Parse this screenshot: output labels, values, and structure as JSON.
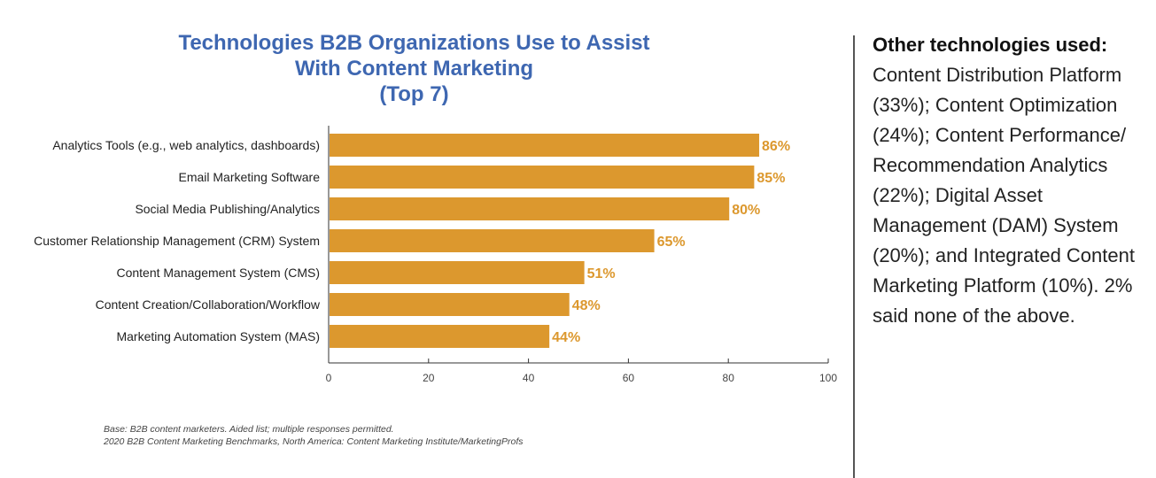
{
  "chart_data": {
    "type": "bar",
    "orientation": "horizontal",
    "title": [
      "Technologies B2B Organizations Use to Assist",
      "With Content Marketing",
      "(Top 7)"
    ],
    "categories": [
      "Analytics Tools (e.g., web analytics, dashboards)",
      "Email Marketing Software",
      "Social Media Publishing/Analytics",
      "Customer Relationship Management (CRM) System",
      "Content Management System (CMS)",
      "Content Creation/Collaboration/Workflow",
      "Marketing Automation System (MAS)"
    ],
    "values": [
      86,
      85,
      80,
      65,
      51,
      48,
      44
    ],
    "data_labels": [
      "86%",
      "85%",
      "80%",
      "65%",
      "51%",
      "48%",
      "44%"
    ],
    "xlim": [
      0,
      100
    ],
    "xticks": [
      0,
      20,
      40,
      60,
      80,
      100
    ],
    "grid": false,
    "bar_color": "#dc982e",
    "title_color": "#3e67b1"
  },
  "footnotes": [
    "Base: B2B content marketers. Aided list; multiple responses permitted.",
    "2020 B2B Content Marketing Benchmarks, North America: Content Marketing Institute/MarketingProfs"
  ],
  "sidebar": {
    "heading": "Other technologies used:",
    "body": "Content Distribution Platform (33%); Content Optimization (24%); Content Performance/ Recommendation Analytics (22%); Digital Asset Management (DAM) System (20%); and Integrated Content Marketing Platform (10%). 2% said none of the above."
  }
}
